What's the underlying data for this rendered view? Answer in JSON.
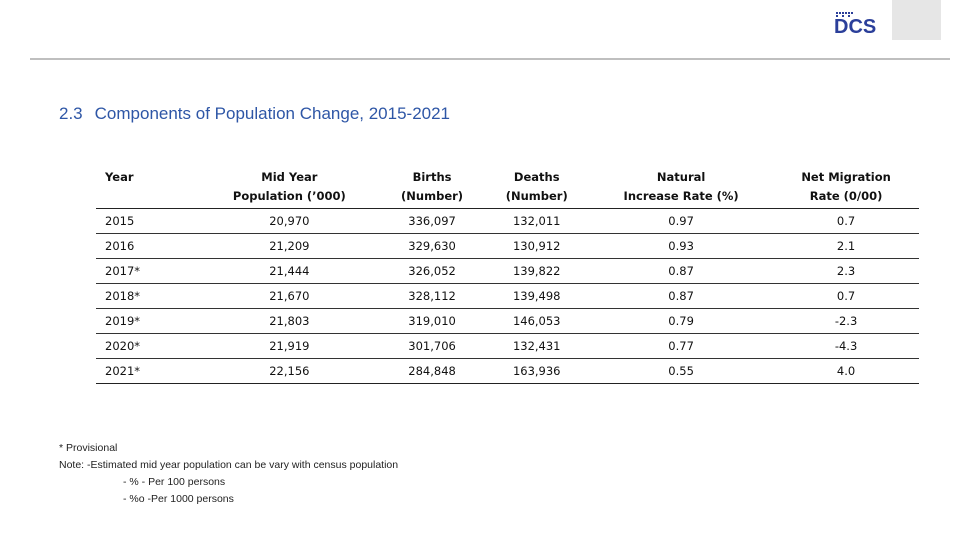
{
  "brand": {
    "logo_text": "DCS",
    "accent": "#2b3f9a"
  },
  "title": {
    "number": "2.3",
    "text": "Components of Population Change, 2015-2021"
  },
  "table": {
    "headers": [
      {
        "l1": "Year",
        "l2": ""
      },
      {
        "l1": "Mid Year",
        "l2": "Population (’000)"
      },
      {
        "l1": "Births",
        "l2": "(Number)"
      },
      {
        "l1": "Deaths",
        "l2": "(Number)"
      },
      {
        "l1": "Natural",
        "l2": "Increase  Rate (%)"
      },
      {
        "l1": "Net Migration",
        "l2": "Rate (0/00)"
      }
    ],
    "rows": [
      [
        "2015",
        "20,970",
        "336,097",
        "132,011",
        "0.97",
        "0.7"
      ],
      [
        "2016",
        "21,209",
        "329,630",
        "130,912",
        "0.93",
        "2.1"
      ],
      [
        "2017*",
        "21,444",
        "326,052",
        "139,822",
        "0.87",
        "2.3"
      ],
      [
        "2018*",
        "21,670",
        "328,112",
        "139,498",
        "0.87",
        "0.7"
      ],
      [
        "2019*",
        "21,803",
        "319,010",
        "146,053",
        "0.79",
        "-2.3"
      ],
      [
        "2020*",
        "21,919",
        "301,706",
        "132,431",
        "0.77",
        "-4.3"
      ],
      [
        "2021*",
        "22,156",
        "284,848",
        "163,936",
        "0.55",
        "4.0"
      ]
    ]
  },
  "notes": {
    "provisional": "* Provisional",
    "note": "Note:  -Estimated mid year population can be vary with census population",
    "per100": "- % - Per 100 persons",
    "per1000": "- %o -Per 1000 persons"
  }
}
